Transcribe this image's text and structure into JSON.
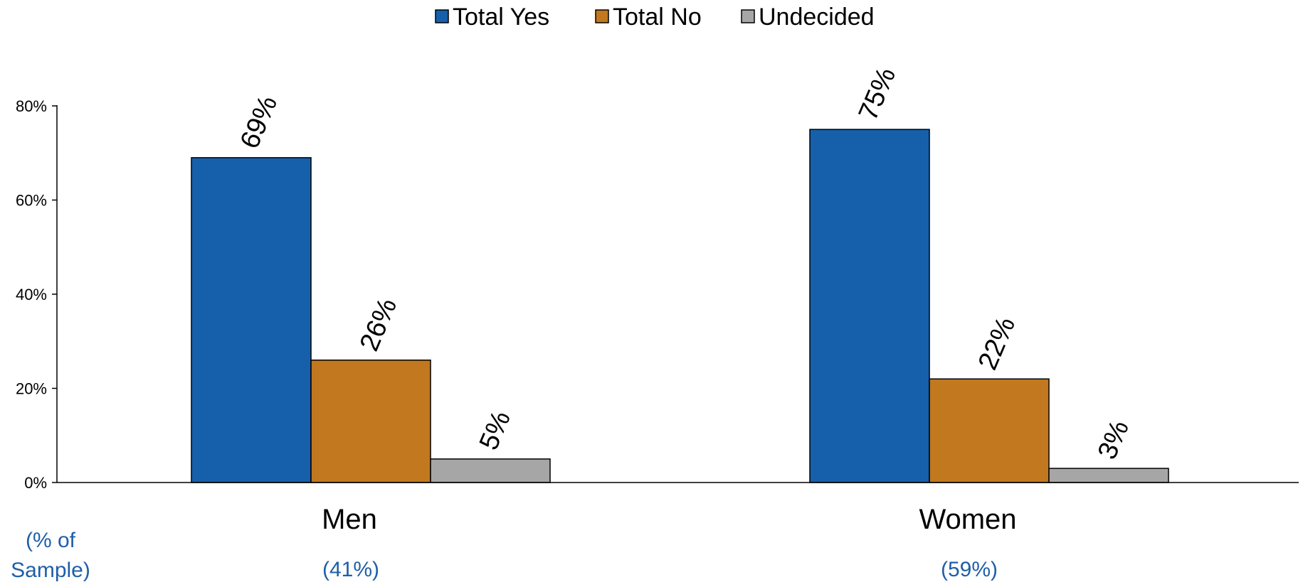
{
  "chart_data": {
    "type": "bar",
    "categories": [
      "Men",
      "Women"
    ],
    "sample_header": "(% of\nSample)",
    "category_samples": [
      "(41%)",
      "(59%)"
    ],
    "series": [
      {
        "name": "Total Yes",
        "values": [
          69,
          75
        ],
        "labels": [
          "69%",
          "75%"
        ],
        "color": "#1660ab"
      },
      {
        "name": "Total No",
        "values": [
          26,
          22
        ],
        "labels": [
          "26%",
          "22%"
        ],
        "color": "#c1781e"
      },
      {
        "name": "Undecided",
        "values": [
          5,
          3
        ],
        "labels": [
          "5%",
          "3%"
        ],
        "color": "#a6a6a6"
      }
    ],
    "ylim": [
      0,
      80
    ],
    "yticks": [
      {
        "value": 0,
        "label": "0%"
      },
      {
        "value": 20,
        "label": "20%"
      },
      {
        "value": 40,
        "label": "40%"
      },
      {
        "value": 60,
        "label": "60%"
      },
      {
        "value": 80,
        "label": "80%"
      }
    ],
    "legend_position": "top-center",
    "grid": false
  }
}
